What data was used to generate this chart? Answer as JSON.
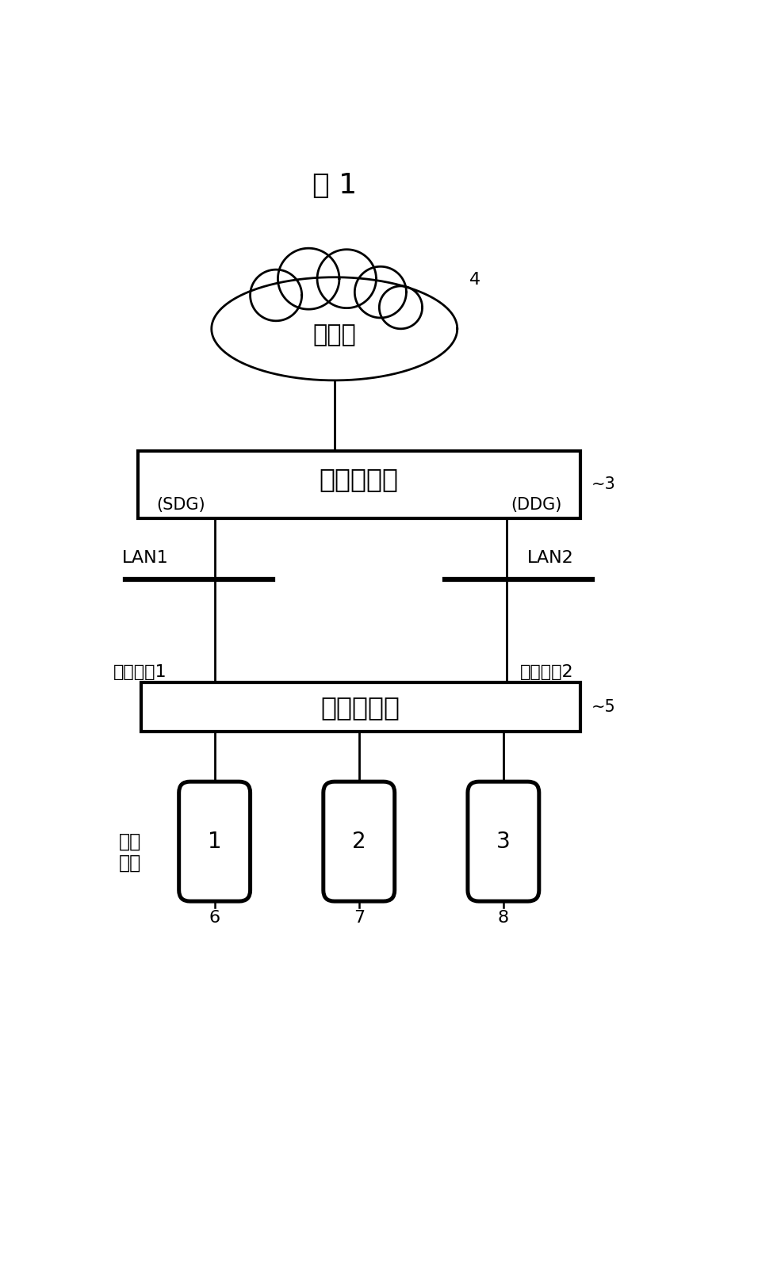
{
  "title": "图 1",
  "bg_color": "#ffffff",
  "line_color": "#000000",
  "cloud_label": "因特网",
  "cloud_num": "4",
  "backbone_label": "骨干路由器",
  "backbone_sdg": "(SDG)",
  "backbone_ddg": "(DDG)",
  "backbone_num": "~3",
  "access_label": "接入路由器",
  "access_num": "~5",
  "lan1_label": "LAN1",
  "lan2_label": "LAN2",
  "netport1_label": "网络端口1",
  "netport2_label": "网络端口2",
  "subnet_label_line1": "接入",
  "subnet_label_line2": "子网",
  "subnet_nodes": [
    {
      "label": "1",
      "num": "6"
    },
    {
      "label": "2",
      "num": "7"
    },
    {
      "label": "3",
      "num": "8"
    }
  ]
}
